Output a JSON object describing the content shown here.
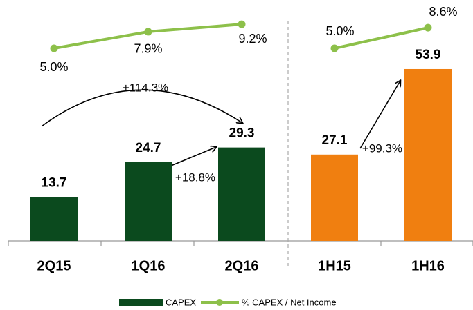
{
  "chart_data": [
    {
      "type": "bar",
      "categories": [
        "2Q15",
        "1Q16",
        "2Q16"
      ],
      "series": [
        {
          "name": "CAPEX",
          "color": "#0b4a1e",
          "values": [
            13.7,
            24.7,
            29.3
          ]
        },
        {
          "name": "% CAPEX / Net Income",
          "type": "line",
          "color": "#8dc04a",
          "values": [
            5.0,
            7.9,
            9.2
          ],
          "value_labels": [
            "5.0%",
            "7.9%",
            "9.2%"
          ]
        }
      ],
      "annotations": [
        {
          "text": "+114.3%"
        },
        {
          "text": "+18.8%"
        }
      ]
    },
    {
      "type": "bar",
      "categories": [
        "1H15",
        "1H16"
      ],
      "series": [
        {
          "name": "CAPEX",
          "color": "#f07f10",
          "values": [
            27.1,
            53.9
          ]
        },
        {
          "name": "% CAPEX / Net Income",
          "type": "line",
          "color": "#8dc04a",
          "values": [
            5.0,
            8.6
          ],
          "value_labels": [
            "5.0%",
            "8.6%"
          ]
        }
      ],
      "annotations": [
        {
          "text": "+99.3%"
        }
      ]
    }
  ]
}
